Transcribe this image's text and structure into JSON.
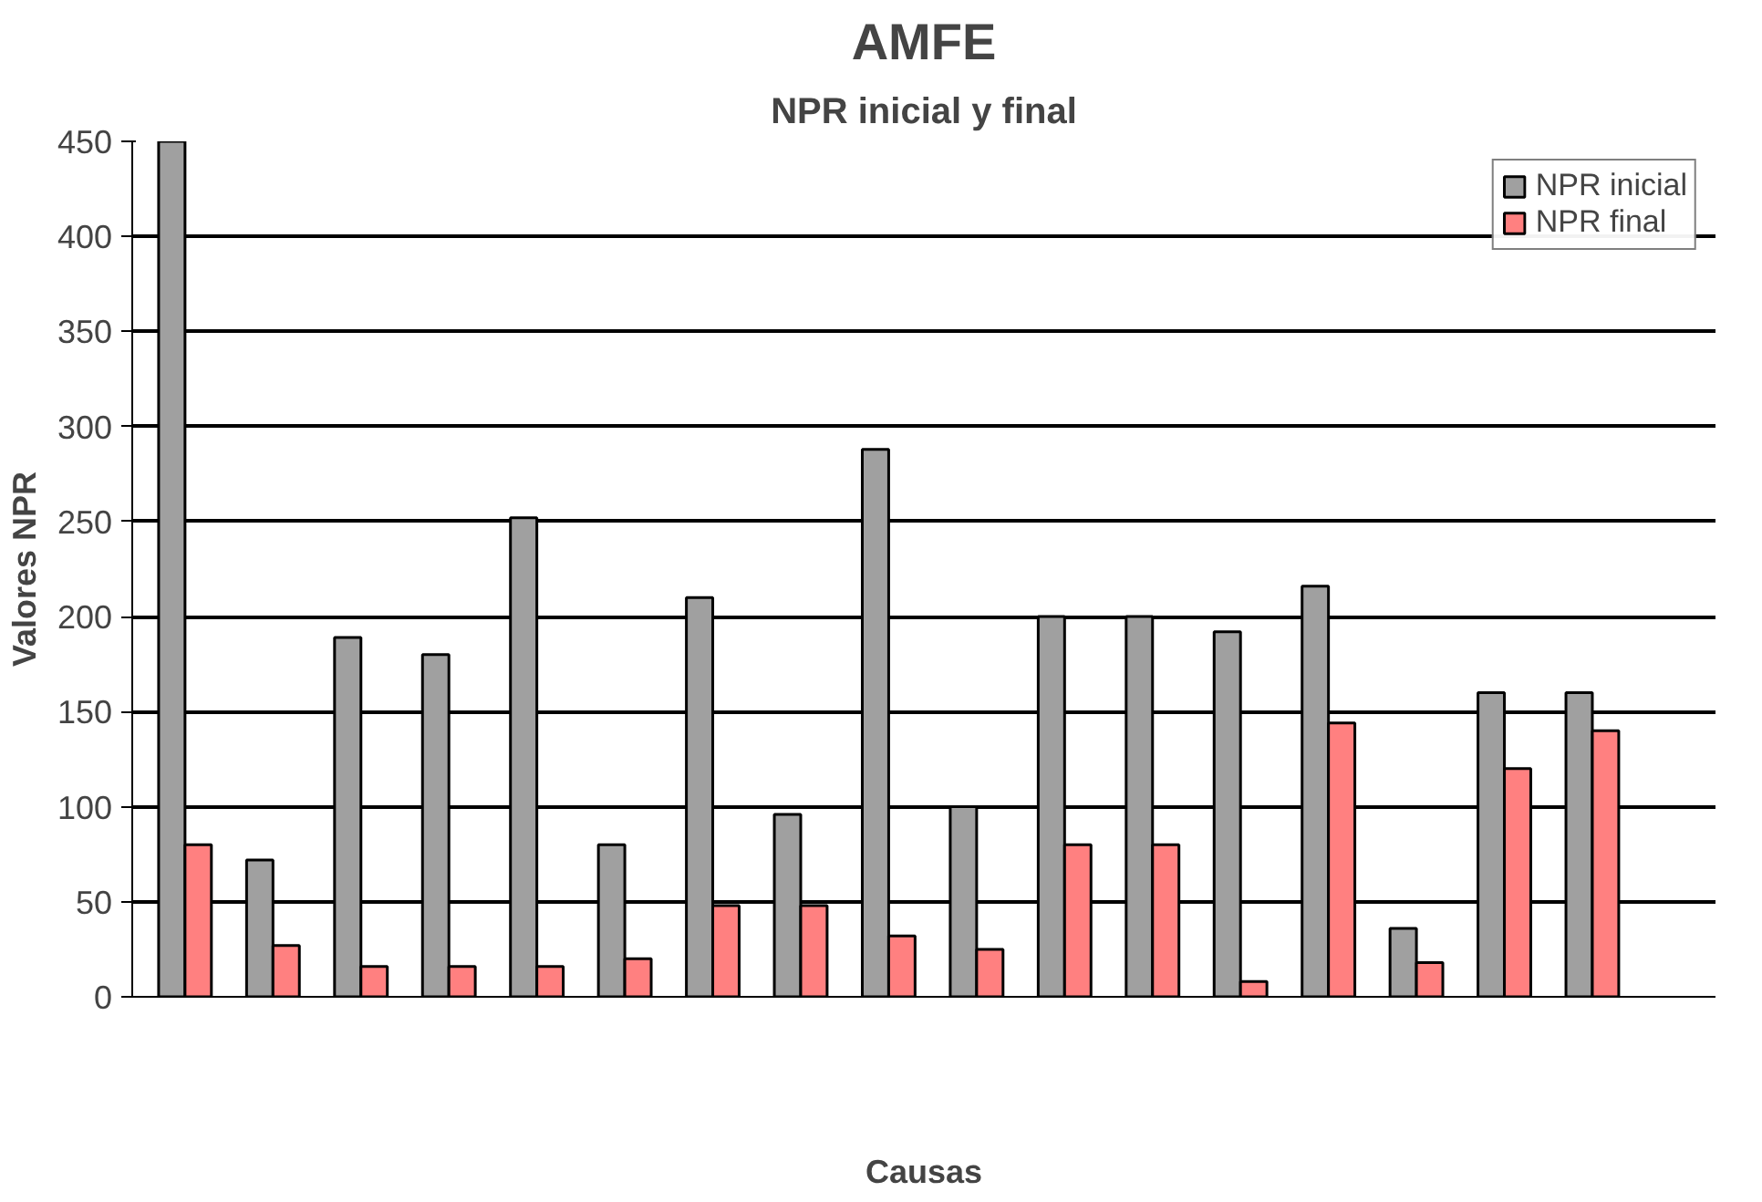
{
  "chart_data": {
    "type": "bar",
    "title": "AMFE",
    "subtitle": "NPR inicial y final",
    "xlabel": "Causas",
    "ylabel": "Valores NPR",
    "categories": [
      null,
      null,
      null,
      null,
      null,
      null,
      null,
      null,
      null,
      null,
      null,
      null,
      null,
      null,
      null,
      null,
      null
    ],
    "series": [
      {
        "name": "NPR inicial",
        "color": "#a0a0a0",
        "values": [
          450,
          72,
          189,
          180,
          252,
          80,
          210,
          96,
          288,
          100,
          200,
          200,
          192,
          216,
          36,
          160,
          160
        ]
      },
      {
        "name": "NPR final",
        "color": "#ff8080",
        "values": [
          80,
          27,
          16,
          16,
          16,
          20,
          48,
          48,
          32,
          25,
          80,
          80,
          8,
          144,
          18,
          120,
          140
        ]
      }
    ],
    "ylim": [
      0,
      450
    ],
    "yticks": [
      0,
      50,
      100,
      150,
      200,
      250,
      300,
      350,
      400,
      450
    ],
    "grid": "y",
    "legend": "top right"
  }
}
